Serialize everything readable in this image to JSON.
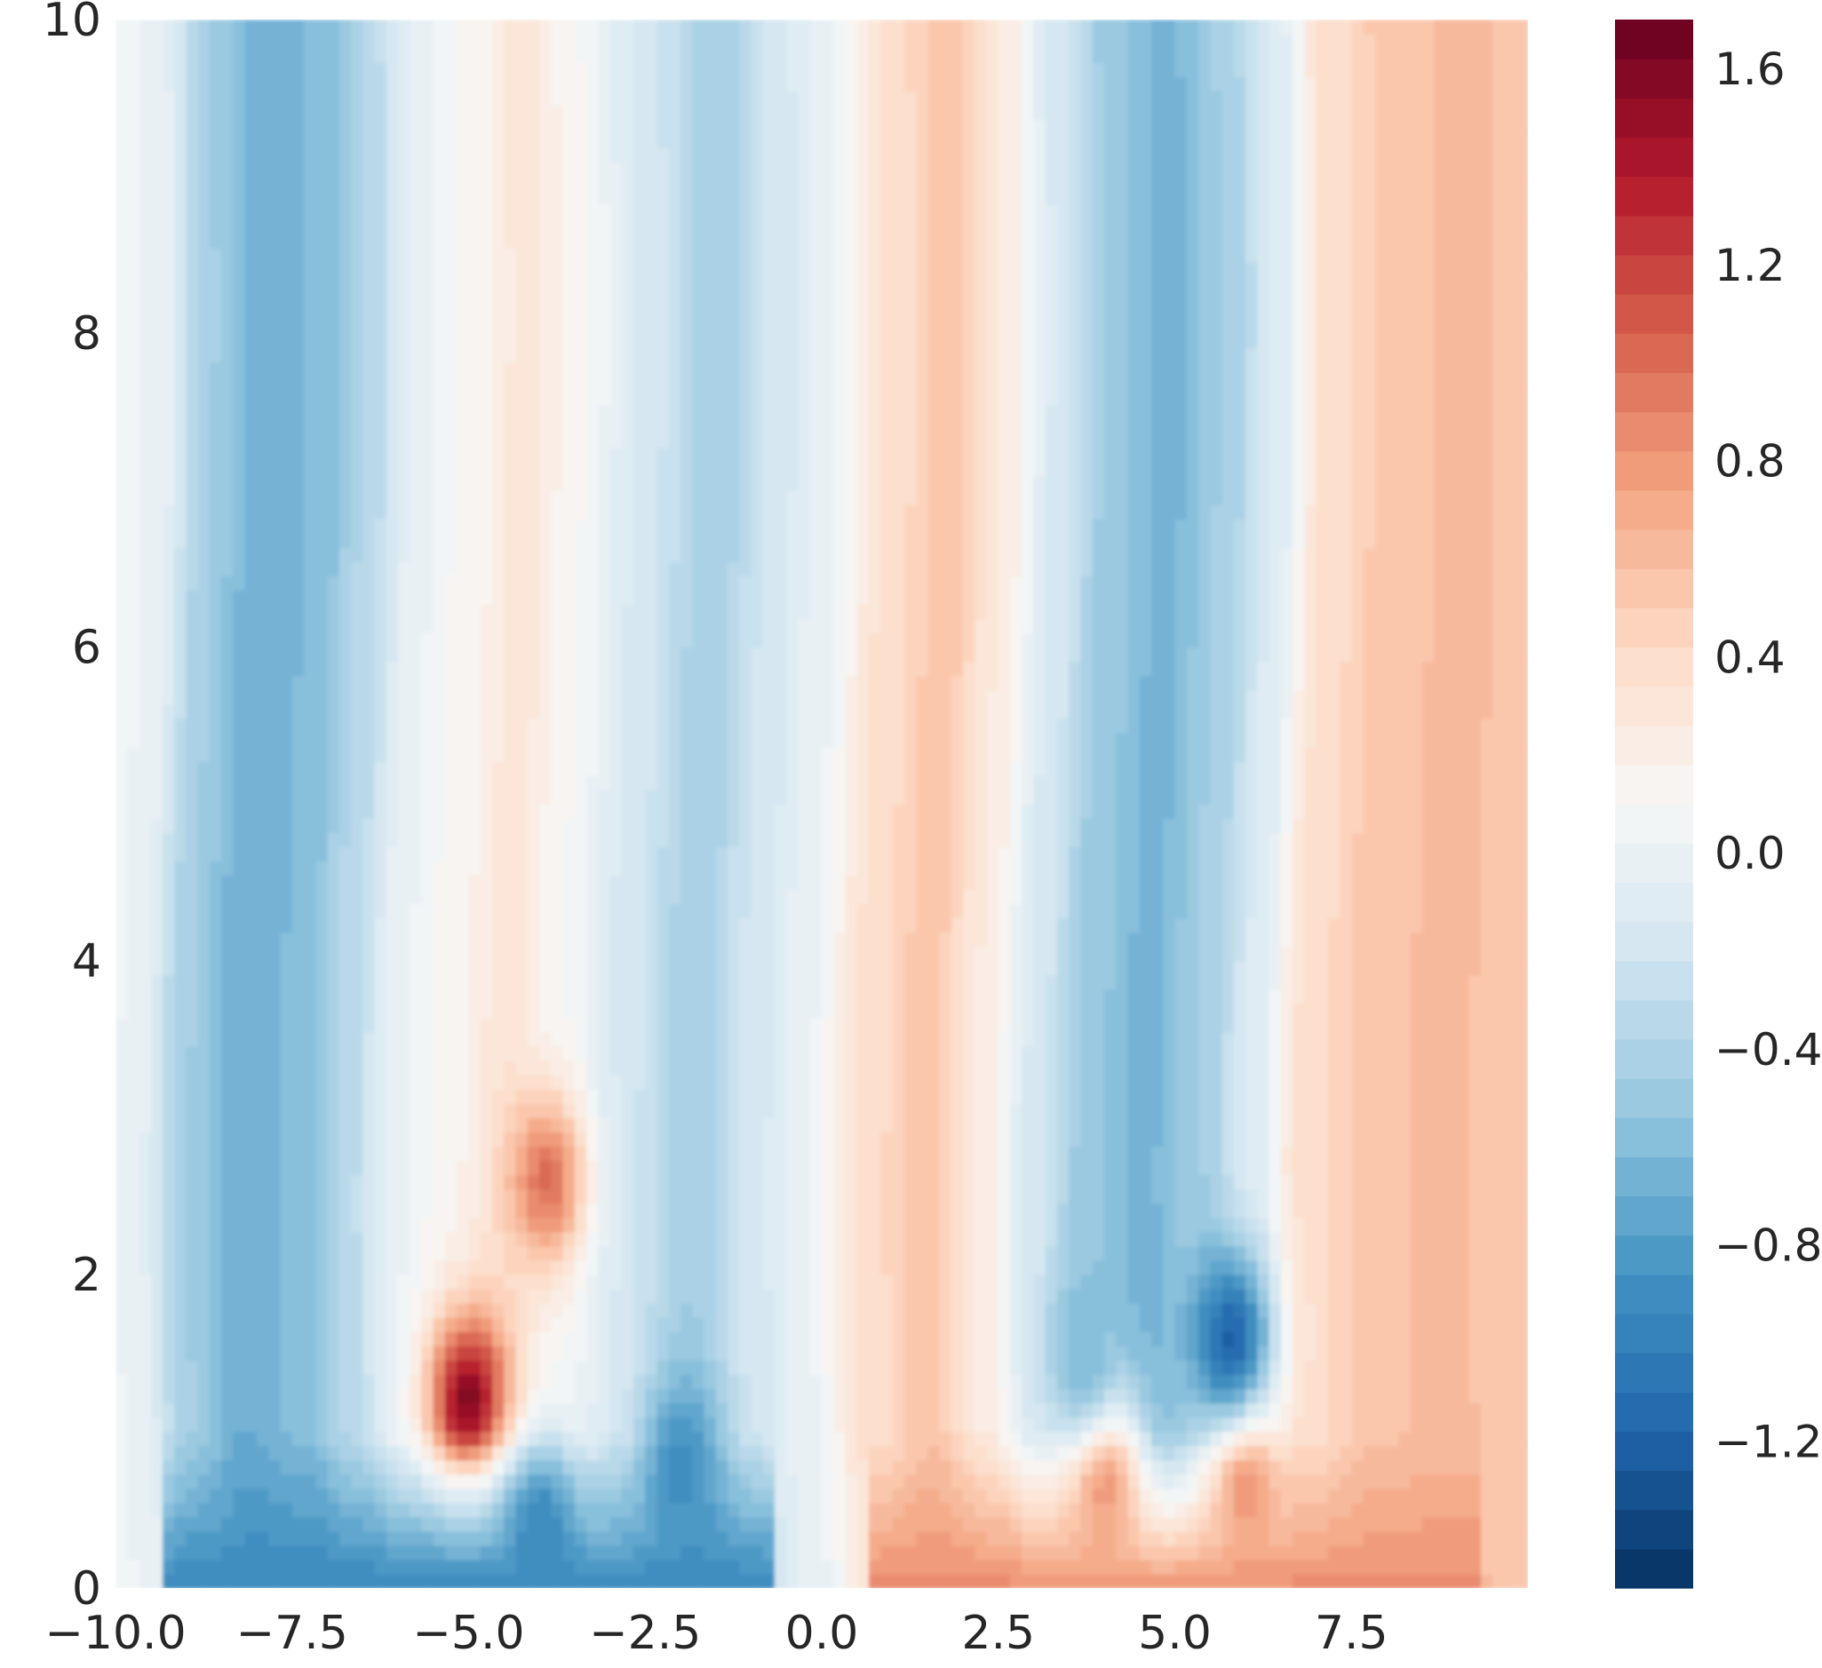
{
  "chart_data": {
    "type": "heatmap",
    "title": "",
    "xlabel": "",
    "ylabel": "",
    "xlim": [
      -10,
      10
    ],
    "ylim": [
      0,
      10
    ],
    "x_ticks": [
      -10.0,
      -7.5,
      -5.0,
      -2.5,
      0.0,
      2.5,
      5.0,
      7.5
    ],
    "x_tick_labels": [
      "−10.0",
      "−7.5",
      "−5.0",
      "−2.5",
      "0.0",
      "2.5",
      "5.0",
      "7.5"
    ],
    "y_ticks": [
      0,
      2,
      4,
      6,
      8,
      10
    ],
    "y_tick_labels": [
      "0",
      "2",
      "4",
      "6",
      "8",
      "10"
    ],
    "colorbar": {
      "range": [
        -1.5,
        1.7
      ],
      "ticks": [
        -1.2,
        -0.8,
        -0.4,
        0.0,
        0.4,
        0.8,
        1.2,
        1.6
      ],
      "tick_labels": [
        "−1.2",
        "−0.8",
        "−0.4",
        "0.0",
        "0.4",
        "0.8",
        "1.2",
        "1.6"
      ],
      "levels": 40,
      "colormap": "RdBu_r",
      "colors": [
        "#053061",
        "#2166ac",
        "#4393c3",
        "#92c5de",
        "#d1e5f0",
        "#f7f7f7",
        "#fddbc7",
        "#f4a582",
        "#d6604d",
        "#b2182b",
        "#67001f"
      ]
    },
    "field": {
      "description_values": "value = column band baseline (x) + local extrema near y<3",
      "column_bands": [
        {
          "x": -10.0,
          "value": 0.05
        },
        {
          "x": -9.5,
          "value": 0.0
        },
        {
          "x": -8.8,
          "value": -0.45
        },
        {
          "x": -8.0,
          "value": -0.7
        },
        {
          "x": -7.2,
          "value": -0.6
        },
        {
          "x": -6.5,
          "value": -0.35
        },
        {
          "x": -5.8,
          "value": 0.0
        },
        {
          "x": -5.0,
          "value": 0.15
        },
        {
          "x": -4.3,
          "value": 0.3
        },
        {
          "x": -3.5,
          "value": 0.1
        },
        {
          "x": -2.7,
          "value": -0.15
        },
        {
          "x": -1.6,
          "value": -0.45
        },
        {
          "x": -0.8,
          "value": -0.2
        },
        {
          "x": 0.0,
          "value": 0.0
        },
        {
          "x": 0.8,
          "value": 0.35
        },
        {
          "x": 1.7,
          "value": 0.55
        },
        {
          "x": 2.5,
          "value": 0.25
        },
        {
          "x": 3.2,
          "value": -0.15
        },
        {
          "x": 4.0,
          "value": -0.5
        },
        {
          "x": 4.8,
          "value": -0.65
        },
        {
          "x": 5.6,
          "value": -0.45
        },
        {
          "x": 6.4,
          "value": -0.1
        },
        {
          "x": 7.0,
          "value": 0.35
        },
        {
          "x": 8.0,
          "value": 0.55
        },
        {
          "x": 9.0,
          "value": 0.6
        },
        {
          "x": 10.0,
          "value": 0.55
        }
      ],
      "features": [
        {
          "x": -5.0,
          "y": 1.2,
          "value": 1.6
        },
        {
          "x": -3.9,
          "y": 2.6,
          "value": 1.0
        },
        {
          "x": -4.0,
          "y": 0.4,
          "value": -0.95
        },
        {
          "x": -2.0,
          "y": 0.8,
          "value": -0.9
        },
        {
          "x": 4.0,
          "y": 0.7,
          "value": 0.85
        },
        {
          "x": 6.0,
          "y": 0.7,
          "value": 0.85
        },
        {
          "x": 3.7,
          "y": 1.5,
          "value": -0.6
        },
        {
          "x": 5.8,
          "y": 1.6,
          "value": -1.2
        }
      ]
    }
  }
}
